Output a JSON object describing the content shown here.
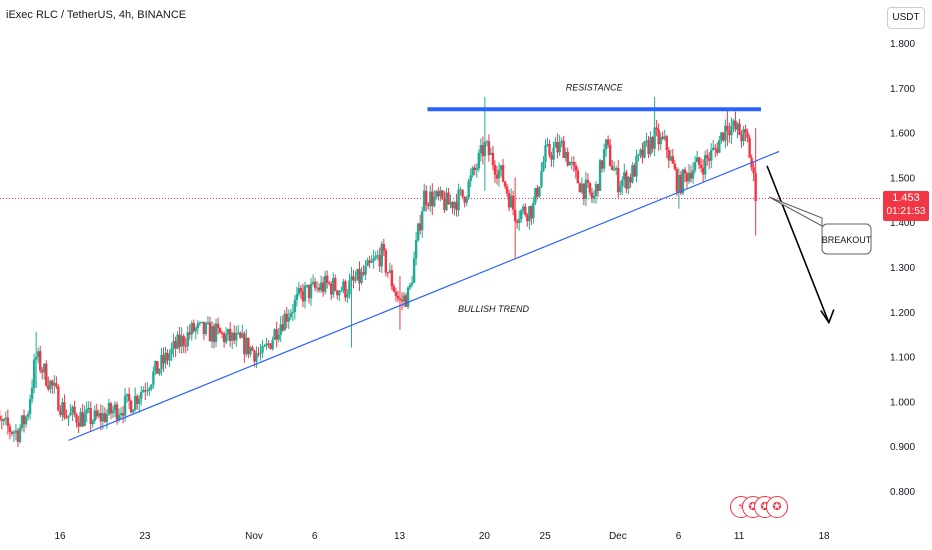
{
  "header": {
    "title": "iExec RLC / TetherUS, 4h, BINANCE",
    "currency": "USDT"
  },
  "price_tag": {
    "price": "1.453",
    "countdown": "01:21:53"
  },
  "events": [
    {
      "name": "lightning-event-icon",
      "glyph": "⚡"
    },
    {
      "name": "us-flag-event-icon-1",
      "glyph": "✪"
    },
    {
      "name": "us-flag-event-icon-2",
      "glyph": "✪"
    },
    {
      "name": "us-flag-event-icon-3",
      "glyph": "✪"
    }
  ],
  "colors": {
    "up": "#22ab94",
    "down": "#f23645",
    "trend": "#2962ff",
    "resistance": "#2962ff"
  },
  "chart_data": {
    "type": "candlestick",
    "y_axis": {
      "ticks": [
        1.8,
        1.7,
        1.6,
        1.5,
        1.4,
        1.3,
        1.2,
        1.1,
        1.0,
        0.9,
        0.8
      ],
      "tick_labels": [
        "1.800",
        "1.700",
        "1.600",
        "1.500",
        "1.400",
        "1.300",
        "1.200",
        "1.100",
        "1.000",
        "0.900",
        "0.800"
      ],
      "range": [
        0.76,
        1.84
      ]
    },
    "x_axis": {
      "ticks": [
        {
          "label": "16",
          "day": 16
        },
        {
          "label": "23",
          "day": 23
        },
        {
          "label": "Nov",
          "day": 32
        },
        {
          "label": "6",
          "day": 37
        },
        {
          "label": "13",
          "day": 44
        },
        {
          "label": "20",
          "day": 51
        },
        {
          "label": "25",
          "day": 56
        },
        {
          "label": "Dec",
          "day": 62
        },
        {
          "label": "6",
          "day": 67
        },
        {
          "label": "11",
          "day": 72
        },
        {
          "label": "18",
          "day": 79
        }
      ],
      "range": [
        10.2,
        83
      ]
    },
    "price_line": 1.453,
    "anchors": [
      [
        10.2,
        0.96
      ],
      [
        12.5,
        0.93
      ],
      [
        13.3,
        0.97
      ],
      [
        14.0,
        1.1
      ],
      [
        15.0,
        1.05
      ],
      [
        16.5,
        0.97
      ],
      [
        19.0,
        0.96
      ],
      [
        22.0,
        1.0
      ],
      [
        24.0,
        1.07
      ],
      [
        25.5,
        1.12
      ],
      [
        27.0,
        1.16
      ],
      [
        29.0,
        1.15
      ],
      [
        31.0,
        1.13
      ],
      [
        32.7,
        1.1
      ],
      [
        34.0,
        1.17
      ],
      [
        36.0,
        1.24
      ],
      [
        38.0,
        1.26
      ],
      [
        39.5,
        1.25
      ],
      [
        41.0,
        1.28
      ],
      [
        42.5,
        1.33
      ],
      [
        44.0,
        1.22
      ],
      [
        44.8,
        1.24
      ],
      [
        46.0,
        1.46
      ],
      [
        48.0,
        1.44
      ],
      [
        49.3,
        1.46
      ],
      [
        50.3,
        1.52
      ],
      [
        51.0,
        1.57
      ],
      [
        52.5,
        1.5
      ],
      [
        53.5,
        1.42
      ],
      [
        55.0,
        1.43
      ],
      [
        56.0,
        1.55
      ],
      [
        57.5,
        1.57
      ],
      [
        58.5,
        1.5
      ],
      [
        60.0,
        1.45
      ],
      [
        61.0,
        1.57
      ],
      [
        62.0,
        1.49
      ],
      [
        63.0,
        1.5
      ],
      [
        64.0,
        1.55
      ],
      [
        65.0,
        1.59
      ],
      [
        66.0,
        1.57
      ],
      [
        67.0,
        1.48
      ],
      [
        68.0,
        1.52
      ],
      [
        69.0,
        1.53
      ],
      [
        70.0,
        1.56
      ],
      [
        71.0,
        1.62
      ],
      [
        72.0,
        1.6
      ],
      [
        72.7,
        1.58
      ],
      [
        73.4,
        1.46
      ]
    ],
    "spikes": [
      {
        "day": 14.0,
        "high": 1.155,
        "low": 1.03
      },
      {
        "day": 40.0,
        "high": 1.3,
        "low": 1.12
      },
      {
        "day": 44.0,
        "high": 1.28,
        "low": 1.16
      },
      {
        "day": 51.0,
        "high": 1.68,
        "low": 1.47
      },
      {
        "day": 53.5,
        "high": 1.5,
        "low": 1.32
      },
      {
        "day": 65.0,
        "high": 1.68,
        "low": 1.55
      },
      {
        "day": 67.0,
        "high": 1.52,
        "low": 1.43
      },
      {
        "day": 71.0,
        "high": 1.65,
        "low": 1.57
      },
      {
        "day": 73.4,
        "high": 1.61,
        "low": 1.37
      }
    ],
    "annotations": {
      "resistance": {
        "label": "RESISTANCE",
        "y": 1.652,
        "x_start": 46.3,
        "x_end": 73.8
      },
      "trendline": {
        "label": "BULLISH TREND",
        "points": [
          [
            16.7,
            0.913
          ],
          [
            75.3,
            1.558
          ]
        ]
      },
      "breakout": {
        "label": "BREAKOUT"
      },
      "arrow": {
        "from": [
          74.3,
          1.526
        ],
        "to": [
          79.4,
          1.176
        ]
      }
    }
  }
}
